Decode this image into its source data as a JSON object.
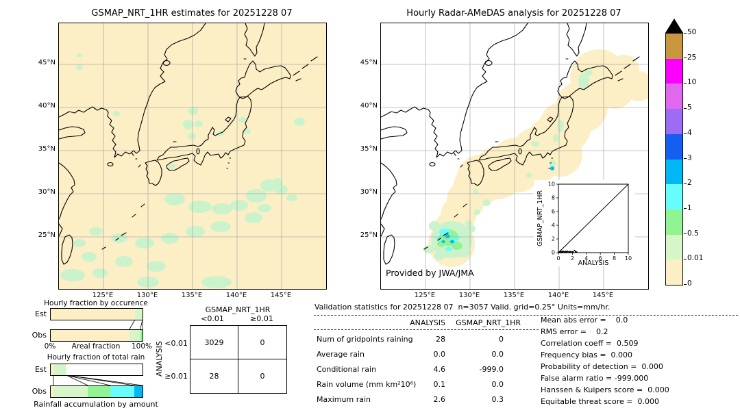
{
  "left_map": {
    "title": "GSMAP_NRT_1HR estimates for 20251228 07",
    "lat_ticks": [
      "45°N",
      "40°N",
      "35°N",
      "30°N",
      "25°N"
    ],
    "lon_ticks": [
      "125°E",
      "130°E",
      "135°E",
      "140°E",
      "145°E"
    ]
  },
  "right_map": {
    "title": "Hourly Radar-AMeDAS analysis for 20251228 07",
    "credit": "Provided by JWA/JMA",
    "lat_ticks": [
      "45°N",
      "40°N",
      "35°N",
      "30°N",
      "25°N"
    ],
    "lon_ticks": [
      "125°E",
      "130°E",
      "135°E",
      "140°E",
      "145°E"
    ]
  },
  "colorbar": {
    "units": "mm/hr",
    "tick_labels": [
      "50",
      "25",
      "10",
      "5",
      "4",
      "3",
      "2",
      "1",
      "0.5",
      "0.01",
      "0"
    ],
    "segment_colors_top_to_bottom": [
      "#c8963c",
      "#fd00fd",
      "#df68ee",
      "#9c6cf4",
      "#155ef2",
      "#00b9f4",
      "#68fdfd",
      "#90f492",
      "#d6f6c9",
      "#fceec5"
    ],
    "overflow_color": "#000000"
  },
  "validation": {
    "title": "Validation statistics for 20251228 07  n=3057 Valid. grid=0.25° Units=mm/hr.",
    "col_headers": [
      "ANALYSIS",
      "GSMAP_NRT_1HR"
    ],
    "rows": [
      {
        "label": "Num of gridpoints raining",
        "analysis": "28",
        "gsmap": "0"
      },
      {
        "label": "Average rain",
        "analysis": "0.0",
        "gsmap": "0.0"
      },
      {
        "label": "Conditional rain",
        "analysis": "4.6",
        "gsmap": "-999.0"
      },
      {
        "label": "Rain volume (mm km²10⁶)",
        "analysis": "0.1",
        "gsmap": "0.0"
      },
      {
        "label": "Maximum rain",
        "analysis": "2.6",
        "gsmap": "0.3"
      }
    ],
    "scores": [
      {
        "label": "Mean abs error",
        "value": "0.0"
      },
      {
        "label": "RMS error",
        "value": "0.2"
      },
      {
        "label": "Correlation coeff",
        "value": "0.509"
      },
      {
        "label": "Frequency bias",
        "value": "0.000"
      },
      {
        "label": "Probability of detection",
        "value": "0.000"
      },
      {
        "label": "False alarm ratio",
        "value": "-999.000"
      },
      {
        "label": "Hanssen & Kuipers score",
        "value": "0.000"
      },
      {
        "label": "Equitable threat score",
        "value": "0.000"
      }
    ]
  },
  "chart_data": [
    {
      "id": "occurrence",
      "type": "bar",
      "title": "Hourly fraction by occurence",
      "orientation": "horizontal",
      "categories": [
        "Est",
        "Obs"
      ],
      "xlabel": "Areal fraction",
      "x_axis_labels": [
        "0%",
        "100%"
      ],
      "xlim": [
        0,
        1
      ],
      "series": [
        {
          "name": "0-0.01 mm/hr",
          "color": "#fceec5",
          "values": [
            0.918,
            0.857
          ]
        },
        {
          "name": "0.01-0.5 mm/hr",
          "color": "#d6f6c9",
          "values": [
            0.082,
            0.118
          ]
        },
        {
          "name": "0.5-1 mm/hr",
          "color": "#90f492",
          "values": [
            0.0,
            0.025
          ]
        }
      ]
    },
    {
      "id": "total_rain",
      "type": "bar",
      "title": "Hourly fraction of total rain",
      "orientation": "horizontal",
      "categories": [
        "Est",
        "Obs"
      ],
      "xlabel": "Rainfall accumulation by amount",
      "xlim": [
        0,
        1
      ],
      "series": [
        {
          "name": "0-0.01 mm/hr",
          "color": "#fceec5",
          "values": [
            0.03,
            0.03
          ]
        },
        {
          "name": "0.01-0.5 mm/hr",
          "color": "#d6f6c9",
          "values": [
            0.14,
            0.375
          ]
        },
        {
          "name": "0.5-1 mm/hr",
          "color": "#90f492",
          "values": [
            0.0,
            0.245
          ]
        },
        {
          "name": "1-2 mm/hr",
          "color": "#68fdfd",
          "values": [
            0.0,
            0.26
          ]
        },
        {
          "name": "2-3 mm/hr",
          "color": "#00b9f4",
          "values": [
            0.0,
            0.09
          ]
        }
      ]
    },
    {
      "id": "contingency",
      "type": "table",
      "title": "GSMAP_NRT_1HR",
      "row_axis": "ANALYSIS",
      "col_labels": [
        "<0.01",
        "≥0.01"
      ],
      "row_labels": [
        "<0.01",
        "≥0.01"
      ],
      "values": [
        [
          "3029",
          "0"
        ],
        [
          "28",
          "0"
        ]
      ]
    },
    {
      "id": "inset_scatter",
      "type": "scatter",
      "xlabel": "ANALYSIS",
      "ylabel": "GSMAP_NRT_1HR",
      "xlim": [
        0,
        10
      ],
      "ylim": [
        0,
        10
      ],
      "tick_labels": [
        "0",
        "2",
        "4",
        "6",
        "8",
        "10"
      ],
      "diagonal": true,
      "points": [
        [
          0.05,
          0.05
        ],
        [
          0.1,
          0.1
        ],
        [
          0.15,
          0.02
        ],
        [
          0.2,
          0.12
        ],
        [
          0.25,
          0.05
        ],
        [
          0.3,
          0.2
        ],
        [
          0.35,
          0.08
        ],
        [
          0.4,
          0.02
        ],
        [
          0.45,
          0.15
        ],
        [
          0.5,
          0.05
        ],
        [
          0.55,
          0.1
        ],
        [
          0.6,
          0.02
        ],
        [
          0.65,
          0.18
        ],
        [
          0.7,
          0.08
        ],
        [
          0.8,
          0.12
        ],
        [
          0.9,
          0.05
        ],
        [
          1.0,
          0.15
        ],
        [
          1.05,
          0.02
        ],
        [
          1.15,
          0.1
        ],
        [
          1.25,
          0.2
        ],
        [
          1.35,
          0.05
        ],
        [
          1.5,
          0.12
        ],
        [
          1.6,
          0.02
        ],
        [
          1.7,
          0.15
        ],
        [
          1.85,
          0.08
        ],
        [
          2.0,
          0.1
        ],
        [
          2.15,
          0.05
        ],
        [
          2.3,
          0.3
        ],
        [
          2.45,
          0.12
        ],
        [
          2.6,
          0.08
        ]
      ]
    },
    {
      "id": "colorbar_scale",
      "type": "colorbar",
      "units": "mm/hr",
      "levels": [
        0,
        0.01,
        0.5,
        1,
        2,
        3,
        4,
        5,
        10,
        25,
        50
      ]
    }
  ]
}
